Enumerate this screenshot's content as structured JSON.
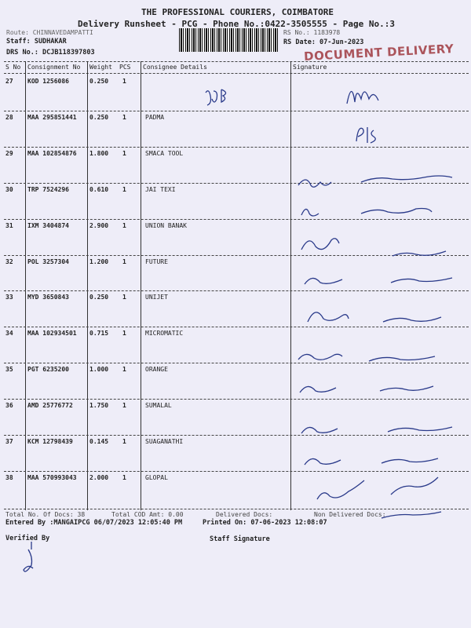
{
  "header": {
    "company": "THE PROFESSIONAL COURIERS, COIMBATORE",
    "subtitle": "Delivery Runsheet - PCG - Phone No.:0422-3505555 - Page No.:3",
    "route": "Route: CHINNAVEDAMPATTI",
    "staff": "Staff: SUDHAKAR",
    "drs": "DRS No.: DCJB118397803",
    "rs_no": "RS No.: 1183978",
    "rs_date": "RS Date: 07-Jun-2023",
    "stamp": "DOCUMENT DELIVERY"
  },
  "table": {
    "columns": [
      "S No",
      "Consignment No",
      "Weight",
      "PCS",
      "Consignee Details",
      "Signature"
    ],
    "rows": [
      {
        "sno": "27",
        "consignment": "KOD 1256086",
        "weight": "0.250",
        "pcs": "1",
        "consignee": ""
      },
      {
        "sno": "28",
        "consignment": "MAA 295851441",
        "weight": "0.250",
        "pcs": "1",
        "consignee": "PADMA"
      },
      {
        "sno": "29",
        "consignment": "MAA 102854876",
        "weight": "1.800",
        "pcs": "1",
        "consignee": "SMACA TOOL"
      },
      {
        "sno": "30",
        "consignment": "TRP 7524296",
        "weight": "0.610",
        "pcs": "1",
        "consignee": "JAI TEXI"
      },
      {
        "sno": "31",
        "consignment": "IXM 3404874",
        "weight": "2.900",
        "pcs": "1",
        "consignee": "UNION BANAK"
      },
      {
        "sno": "32",
        "consignment": "POL 3257304",
        "weight": "1.200",
        "pcs": "1",
        "consignee": "FUTURE"
      },
      {
        "sno": "33",
        "consignment": "MYD 3650843",
        "weight": "0.250",
        "pcs": "1",
        "consignee": "UNIJET"
      },
      {
        "sno": "34",
        "consignment": "MAA 102934501",
        "weight": "0.715",
        "pcs": "1",
        "consignee": "MICROMATIC"
      },
      {
        "sno": "35",
        "consignment": "PGT 6235200",
        "weight": "1.000",
        "pcs": "1",
        "consignee": "ORANGE"
      },
      {
        "sno": "36",
        "consignment": "AMD 25776772",
        "weight": "1.750",
        "pcs": "1",
        "consignee": "SUMALAL"
      },
      {
        "sno": "37",
        "consignment": "KCM 12798439",
        "weight": "0.145",
        "pcs": "1",
        "consignee": "SUAGANATHI"
      },
      {
        "sno": "38",
        "consignment": "MAA 570993043",
        "weight": "2.000",
        "pcs": "1",
        "consignee": "GLOPAL"
      }
    ]
  },
  "footer": {
    "total_docs": "Total No. Of Docs:  38",
    "total_cod": "Total COD Amt:     0.00",
    "delivered": "Delivered Docs:",
    "non_delivered": "Non Delivered Docs:",
    "entered_by": "Entered By :MANGAIPCG 06/07/2023 12:05:40 PM",
    "printed_on": "Printed On: 07-06-2023 12:08:07",
    "verified_by": "Verified By",
    "staff_signature": "Staff Signature"
  },
  "colors": {
    "paper": "#eeedf8",
    "stamp": "#a03a40",
    "ink": "#2a3a8a"
  }
}
